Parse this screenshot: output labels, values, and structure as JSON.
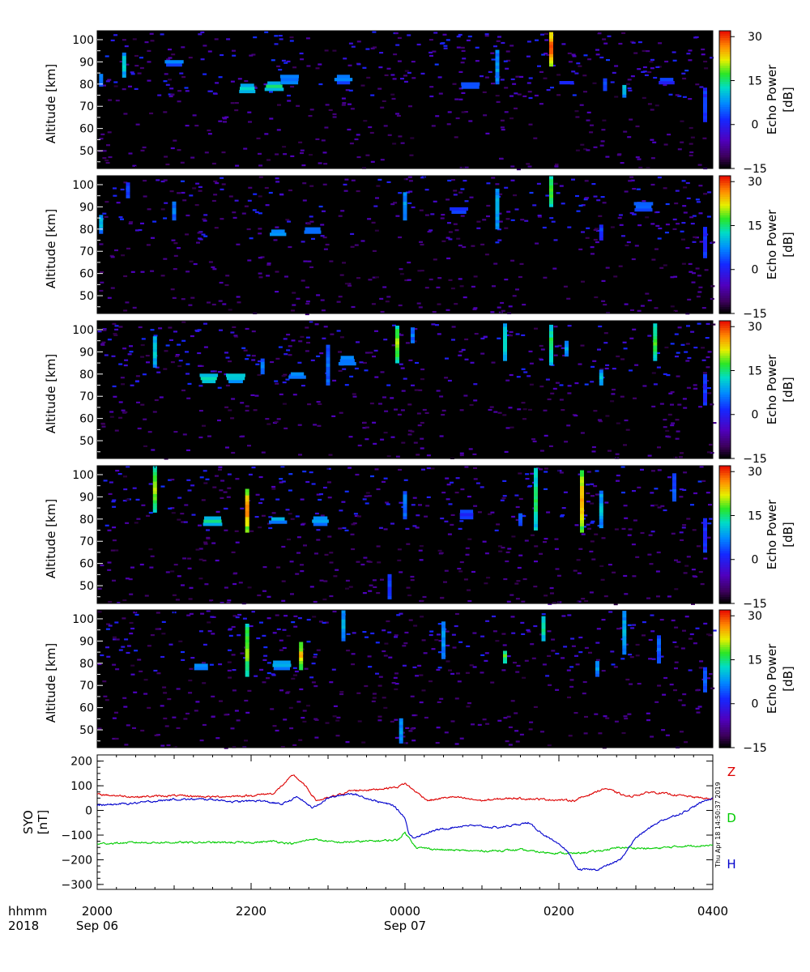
{
  "chart_data": [
    {
      "type": "heatmap",
      "panel": 1,
      "ylabel": "Altitude [km]",
      "yticks": [
        50,
        60,
        70,
        80,
        90,
        100
      ],
      "ylim": [
        42,
        104
      ],
      "xlim_hours": [
        20,
        28
      ],
      "colorbar": {
        "label_line1": "Echo Power",
        "label_line2": "[dB]",
        "ticks": [
          -15,
          0,
          15,
          30
        ],
        "range": [
          -15,
          32
        ],
        "colormap": "rainbow"
      },
      "features": [
        {
          "t": 20.05,
          "alt": [
            79,
            84
          ],
          "db": 8
        },
        {
          "t": 20.35,
          "alt": [
            83,
            93
          ],
          "db": 12
        },
        {
          "t": 21.0,
          "alt": [
            88,
            90
          ],
          "db": 6
        },
        {
          "t": 21.95,
          "alt": [
            76,
            79
          ],
          "db": 12
        },
        {
          "t": 22.3,
          "alt": [
            77,
            80
          ],
          "db": 14
        },
        {
          "t": 22.5,
          "alt": [
            80,
            84
          ],
          "db": 8
        },
        {
          "t": 23.2,
          "alt": [
            80,
            83
          ],
          "db": 6
        },
        {
          "t": 24.85,
          "alt": [
            78,
            80
          ],
          "db": 4
        },
        {
          "t": 25.2,
          "alt": [
            80,
            95
          ],
          "db": 8
        },
        {
          "t": 25.9,
          "alt": [
            88,
            103
          ],
          "db": 30
        },
        {
          "t": 26.1,
          "alt": [
            80,
            81
          ],
          "db": 2
        },
        {
          "t": 26.6,
          "alt": [
            77,
            82
          ],
          "db": 4
        },
        {
          "t": 26.85,
          "alt": [
            74,
            79
          ],
          "db": 12
        },
        {
          "t": 27.4,
          "alt": [
            80,
            82
          ],
          "db": 2
        },
        {
          "t": 27.9,
          "alt": [
            63,
            78
          ],
          "db": 2
        }
      ]
    },
    {
      "type": "heatmap",
      "panel": 2,
      "ylabel": "Altitude [km]",
      "yticks": [
        50,
        60,
        70,
        80,
        90,
        100
      ],
      "ylim": [
        42,
        104
      ],
      "xlim_hours": [
        20,
        28
      ],
      "colorbar": {
        "label_line1": "Echo Power",
        "label_line2": "[dB]",
        "ticks": [
          -15,
          0,
          15,
          30
        ],
        "range": [
          -15,
          32
        ],
        "colormap": "rainbow"
      },
      "features": [
        {
          "t": 20.05,
          "alt": [
            78,
            86
          ],
          "db": 10
        },
        {
          "t": 20.4,
          "alt": [
            94,
            100
          ],
          "db": 4
        },
        {
          "t": 21.0,
          "alt": [
            84,
            92
          ],
          "db": 6
        },
        {
          "t": 22.35,
          "alt": [
            77,
            79
          ],
          "db": 10
        },
        {
          "t": 22.8,
          "alt": [
            78,
            80
          ],
          "db": 8
        },
        {
          "t": 24.0,
          "alt": [
            84,
            96
          ],
          "db": 8
        },
        {
          "t": 24.7,
          "alt": [
            87,
            89
          ],
          "db": 4
        },
        {
          "t": 25.2,
          "alt": [
            80,
            97
          ],
          "db": 10
        },
        {
          "t": 25.9,
          "alt": [
            90,
            103
          ],
          "db": 18
        },
        {
          "t": 26.55,
          "alt": [
            75,
            82
          ],
          "db": 2
        },
        {
          "t": 27.1,
          "alt": [
            88,
            92
          ],
          "db": 4
        },
        {
          "t": 27.9,
          "alt": [
            67,
            80
          ],
          "db": 2
        }
      ]
    },
    {
      "type": "heatmap",
      "panel": 3,
      "ylabel": "Altitude [km]",
      "yticks": [
        50,
        60,
        70,
        80,
        90,
        100
      ],
      "ylim": [
        42,
        104
      ],
      "xlim_hours": [
        20,
        28
      ],
      "colorbar": {
        "label_line1": "Echo Power",
        "label_line2": "[dB]",
        "ticks": [
          -15,
          0,
          15,
          30
        ],
        "range": [
          -15,
          32
        ],
        "colormap": "rainbow"
      },
      "features": [
        {
          "t": 20.75,
          "alt": [
            83,
            96
          ],
          "db": 12
        },
        {
          "t": 21.45,
          "alt": [
            76,
            80
          ],
          "db": 14
        },
        {
          "t": 21.8,
          "alt": [
            76,
            80
          ],
          "db": 12
        },
        {
          "t": 22.15,
          "alt": [
            80,
            86
          ],
          "db": 6
        },
        {
          "t": 22.6,
          "alt": [
            78,
            80
          ],
          "db": 10
        },
        {
          "t": 23.0,
          "alt": [
            75,
            92
          ],
          "db": 6
        },
        {
          "t": 23.25,
          "alt": [
            84,
            88
          ],
          "db": 8
        },
        {
          "t": 23.9,
          "alt": [
            85,
            101
          ],
          "db": 20
        },
        {
          "t": 24.1,
          "alt": [
            94,
            100
          ],
          "db": 6
        },
        {
          "t": 25.3,
          "alt": [
            86,
            102
          ],
          "db": 14
        },
        {
          "t": 25.9,
          "alt": [
            84,
            102
          ],
          "db": 16
        },
        {
          "t": 26.1,
          "alt": [
            88,
            94
          ],
          "db": 10
        },
        {
          "t": 26.55,
          "alt": [
            75,
            81
          ],
          "db": 10
        },
        {
          "t": 27.25,
          "alt": [
            86,
            102
          ],
          "db": 18
        },
        {
          "t": 27.9,
          "alt": [
            66,
            79
          ],
          "db": 2
        }
      ]
    },
    {
      "type": "heatmap",
      "panel": 4,
      "ylabel": "Altitude [km]",
      "yticks": [
        50,
        60,
        70,
        80,
        90,
        100
      ],
      "ylim": [
        42,
        104
      ],
      "xlim_hours": [
        20,
        28
      ],
      "colorbar": {
        "label_line1": "Echo Power",
        "label_line2": "[dB]",
        "ticks": [
          -15,
          0,
          15,
          30
        ],
        "range": [
          -15,
          32
        ],
        "colormap": "rainbow"
      },
      "features": [
        {
          "t": 20.75,
          "alt": [
            83,
            103
          ],
          "db": 20
        },
        {
          "t": 21.5,
          "alt": [
            77,
            80
          ],
          "db": 14
        },
        {
          "t": 21.95,
          "alt": [
            74,
            93
          ],
          "db": 28
        },
        {
          "t": 22.35,
          "alt": [
            78,
            80
          ],
          "db": 10
        },
        {
          "t": 22.9,
          "alt": [
            77,
            80
          ],
          "db": 8
        },
        {
          "t": 23.8,
          "alt": [
            44,
            54
          ],
          "db": 2
        },
        {
          "t": 24.0,
          "alt": [
            80,
            92
          ],
          "db": 6
        },
        {
          "t": 24.8,
          "alt": [
            80,
            84
          ],
          "db": 2
        },
        {
          "t": 25.5,
          "alt": [
            77,
            82
          ],
          "db": 6
        },
        {
          "t": 25.7,
          "alt": [
            75,
            102
          ],
          "db": 16
        },
        {
          "t": 26.3,
          "alt": [
            74,
            102
          ],
          "db": 26
        },
        {
          "t": 26.55,
          "alt": [
            76,
            92
          ],
          "db": 10
        },
        {
          "t": 27.5,
          "alt": [
            88,
            100
          ],
          "db": 4
        },
        {
          "t": 27.9,
          "alt": [
            65,
            80
          ],
          "db": 2
        }
      ]
    },
    {
      "type": "heatmap",
      "panel": 5,
      "ylabel": "Altitude [km]",
      "yticks": [
        50,
        60,
        70,
        80,
        90,
        100
      ],
      "ylim": [
        42,
        104
      ],
      "xlim_hours": [
        20,
        28
      ],
      "colorbar": {
        "label_line1": "Echo Power",
        "label_line2": "[dB]",
        "ticks": [
          -15,
          0,
          15,
          30
        ],
        "range": [
          -15,
          32
        ],
        "colormap": "rainbow"
      },
      "features": [
        {
          "t": 21.35,
          "alt": [
            77,
            79
          ],
          "db": 8
        },
        {
          "t": 21.95,
          "alt": [
            74,
            97
          ],
          "db": 20
        },
        {
          "t": 22.4,
          "alt": [
            77,
            80
          ],
          "db": 10
        },
        {
          "t": 22.65,
          "alt": [
            77,
            89
          ],
          "db": 24
        },
        {
          "t": 23.2,
          "alt": [
            90,
            103
          ],
          "db": 10
        },
        {
          "t": 23.95,
          "alt": [
            44,
            55
          ],
          "db": 8
        },
        {
          "t": 24.5,
          "alt": [
            82,
            98
          ],
          "db": 8
        },
        {
          "t": 25.3,
          "alt": [
            80,
            85
          ],
          "db": 18
        },
        {
          "t": 25.8,
          "alt": [
            90,
            100
          ],
          "db": 14
        },
        {
          "t": 26.5,
          "alt": [
            74,
            80
          ],
          "db": 8
        },
        {
          "t": 26.85,
          "alt": [
            84,
            103
          ],
          "db": 10
        },
        {
          "t": 27.3,
          "alt": [
            80,
            92
          ],
          "db": 6
        },
        {
          "t": 27.9,
          "alt": [
            67,
            78
          ],
          "db": 4
        }
      ]
    },
    {
      "type": "line",
      "panel": 6,
      "ylabel_line1": "SYO",
      "ylabel_line2": "[nT]",
      "yticks": [
        -300,
        -200,
        -100,
        0,
        100,
        200
      ],
      "ylim": [
        -320,
        225
      ],
      "xlim_hours": [
        20,
        28
      ],
      "side_note": "Thu Apr 18 14:50:37 2019",
      "series": [
        {
          "name": "Z",
          "color": "#dd0000",
          "x": [
            20.0,
            20.5,
            21.0,
            21.5,
            22.0,
            22.3,
            22.55,
            22.7,
            22.85,
            23.0,
            23.3,
            23.6,
            23.9,
            24.0,
            24.1,
            24.3,
            24.6,
            25.0,
            25.4,
            25.8,
            26.2,
            26.6,
            26.9,
            27.2,
            27.6,
            28.0
          ],
          "y": [
            65,
            55,
            60,
            55,
            60,
            70,
            145,
            100,
            40,
            50,
            80,
            85,
            95,
            110,
            85,
            40,
            55,
            40,
            50,
            45,
            40,
            90,
            55,
            75,
            60,
            45
          ]
        },
        {
          "name": "D",
          "color": "#00cc00",
          "x": [
            20.0,
            20.5,
            21.0,
            21.5,
            22.0,
            22.3,
            22.55,
            22.8,
            23.1,
            23.5,
            23.9,
            24.0,
            24.15,
            24.5,
            25.0,
            25.5,
            25.8,
            26.2,
            26.5,
            26.8,
            27.2,
            27.6,
            28.0
          ],
          "y": [
            -135,
            -130,
            -130,
            -130,
            -130,
            -125,
            -135,
            -115,
            -130,
            -125,
            -120,
            -90,
            -150,
            -160,
            -165,
            -160,
            -170,
            -175,
            -165,
            -150,
            -155,
            -145,
            -140
          ]
        },
        {
          "name": "H",
          "color": "#0000cc",
          "x": [
            20.0,
            20.5,
            21.0,
            21.5,
            21.8,
            22.1,
            22.4,
            22.6,
            22.8,
            23.0,
            23.3,
            23.6,
            23.85,
            24.0,
            24.05,
            24.1,
            24.4,
            24.8,
            25.2,
            25.6,
            25.9,
            26.1,
            26.25,
            26.5,
            26.8,
            27.0,
            27.3,
            27.6,
            27.9,
            28.0
          ],
          "y": [
            20,
            30,
            45,
            45,
            35,
            40,
            25,
            55,
            10,
            50,
            70,
            40,
            20,
            -30,
            -95,
            -110,
            -80,
            -60,
            -70,
            -50,
            -120,
            -160,
            -240,
            -240,
            -200,
            -110,
            -45,
            -10,
            40,
            50
          ]
        }
      ]
    }
  ],
  "x_axis": {
    "row_label_1": "hhmm",
    "row_label_2": "2018",
    "ticks": [
      {
        "hour": 20,
        "label": "2000",
        "date": "Sep 06"
      },
      {
        "hour": 22,
        "label": "2200",
        "date": ""
      },
      {
        "hour": 24,
        "label": "0000",
        "date": "Sep 07"
      },
      {
        "hour": 26,
        "label": "0200",
        "date": ""
      },
      {
        "hour": 28,
        "label": "0400",
        "date": ""
      }
    ]
  },
  "colors": {
    "background": "#ffffff",
    "panel_bg": "#000000",
    "axis": "#000000"
  }
}
